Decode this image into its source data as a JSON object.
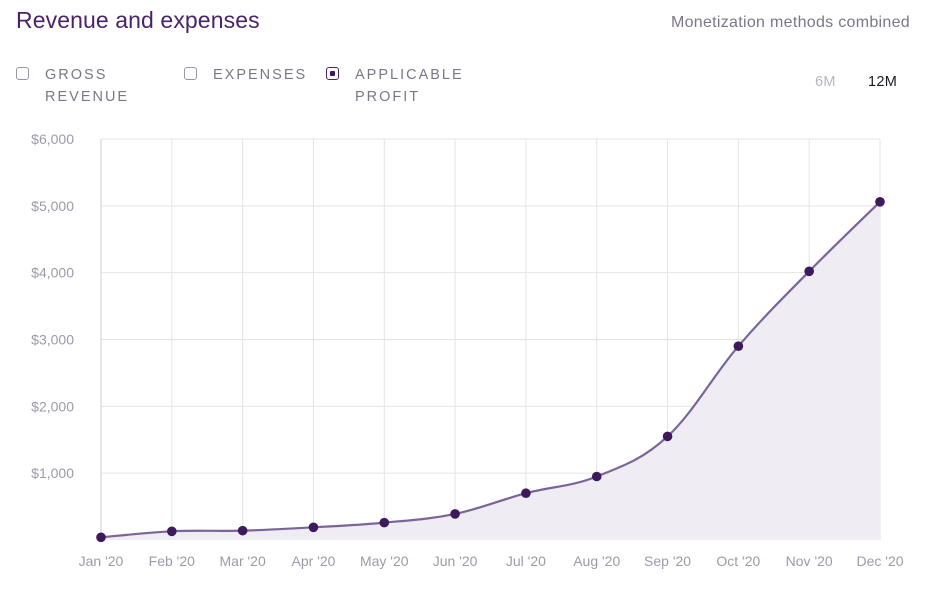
{
  "header": {
    "title": "Revenue and expenses",
    "subtitle": "Monetization methods combined"
  },
  "legend": {
    "items": [
      {
        "line1": "GROSS",
        "line2": "REVENUE",
        "checked": false
      },
      {
        "line1": "EXPENSES",
        "line2": "",
        "checked": false
      },
      {
        "line1": "APPLICABLE",
        "line2": "PROFIT",
        "checked": true
      }
    ]
  },
  "range": {
    "options": [
      "6M",
      "12M"
    ],
    "selected": "12M"
  },
  "colors": {
    "line": "#7a6598",
    "area": "#efecf3",
    "point": "#3c1a5b",
    "grid": "#e4e2e8"
  },
  "chart_data": {
    "type": "area",
    "x": [
      "Jan '20",
      "Feb '20",
      "Mar '20",
      "Apr '20",
      "May '20",
      "Jun '20",
      "Jul '20",
      "Aug '20",
      "Sep '20",
      "Oct '20",
      "Nov '20",
      "Dec '20"
    ],
    "series": [
      {
        "name": "APPLICABLE PROFIT",
        "values": [
          40,
          130,
          140,
          190,
          260,
          390,
          700,
          950,
          1550,
          2900,
          4020,
          5060
        ]
      }
    ],
    "ylim": [
      0,
      6000
    ],
    "yticks": [
      1000,
      2000,
      3000,
      4000,
      5000,
      6000
    ],
    "ytick_labels": [
      "$1,000",
      "$2,000",
      "$3,000",
      "$4,000",
      "$5,000",
      "$6,000"
    ],
    "grid": true
  }
}
